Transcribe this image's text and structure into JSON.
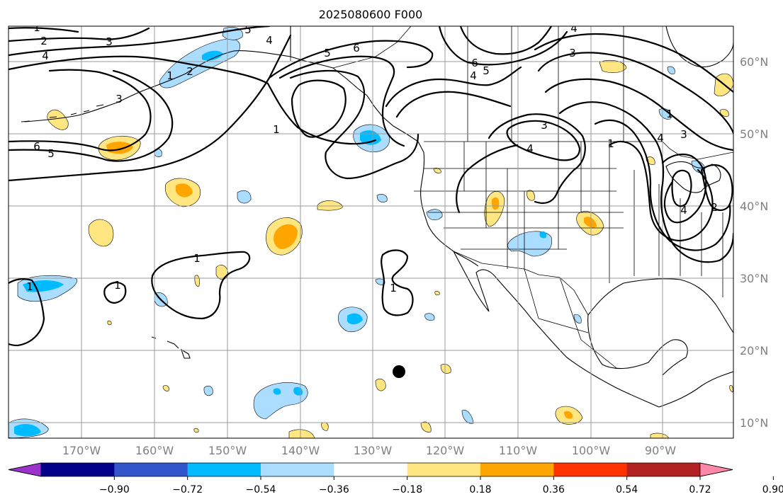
{
  "title": "2025080600 F000",
  "lon_labels": [
    "170°W",
    "160°W",
    "150°W",
    "140°W",
    "130°W",
    "120°W",
    "110°W",
    "100°W",
    "90°W"
  ],
  "lat_labels": [
    "60°N",
    "50°N",
    "40°N",
    "30°N",
    "20°N",
    "10°N"
  ],
  "colorbar": {
    "ticks": [
      "−0.90",
      "−0.72",
      "−0.54",
      "−0.36",
      "−0.18",
      "0.18",
      "0.36",
      "0.54",
      "0.72",
      "0.90"
    ],
    "colors": [
      "#9933cc",
      "#000088",
      "#3355cc",
      "#00bbff",
      "#aaddff",
      "#ffffff",
      "#ffe680",
      "#ffa500",
      "#ff3300",
      "#b22222",
      "#ff88aa"
    ]
  },
  "contour_labels": [
    "1",
    "2",
    "3",
    "4",
    "5",
    "6"
  ],
  "legend_colors": {
    "neg_light": "#aaddff",
    "neg_mid": "#00bbff",
    "pos_light": "#ffe680",
    "pos_mid": "#ffa500",
    "pos_strong": "#ff3300"
  }
}
